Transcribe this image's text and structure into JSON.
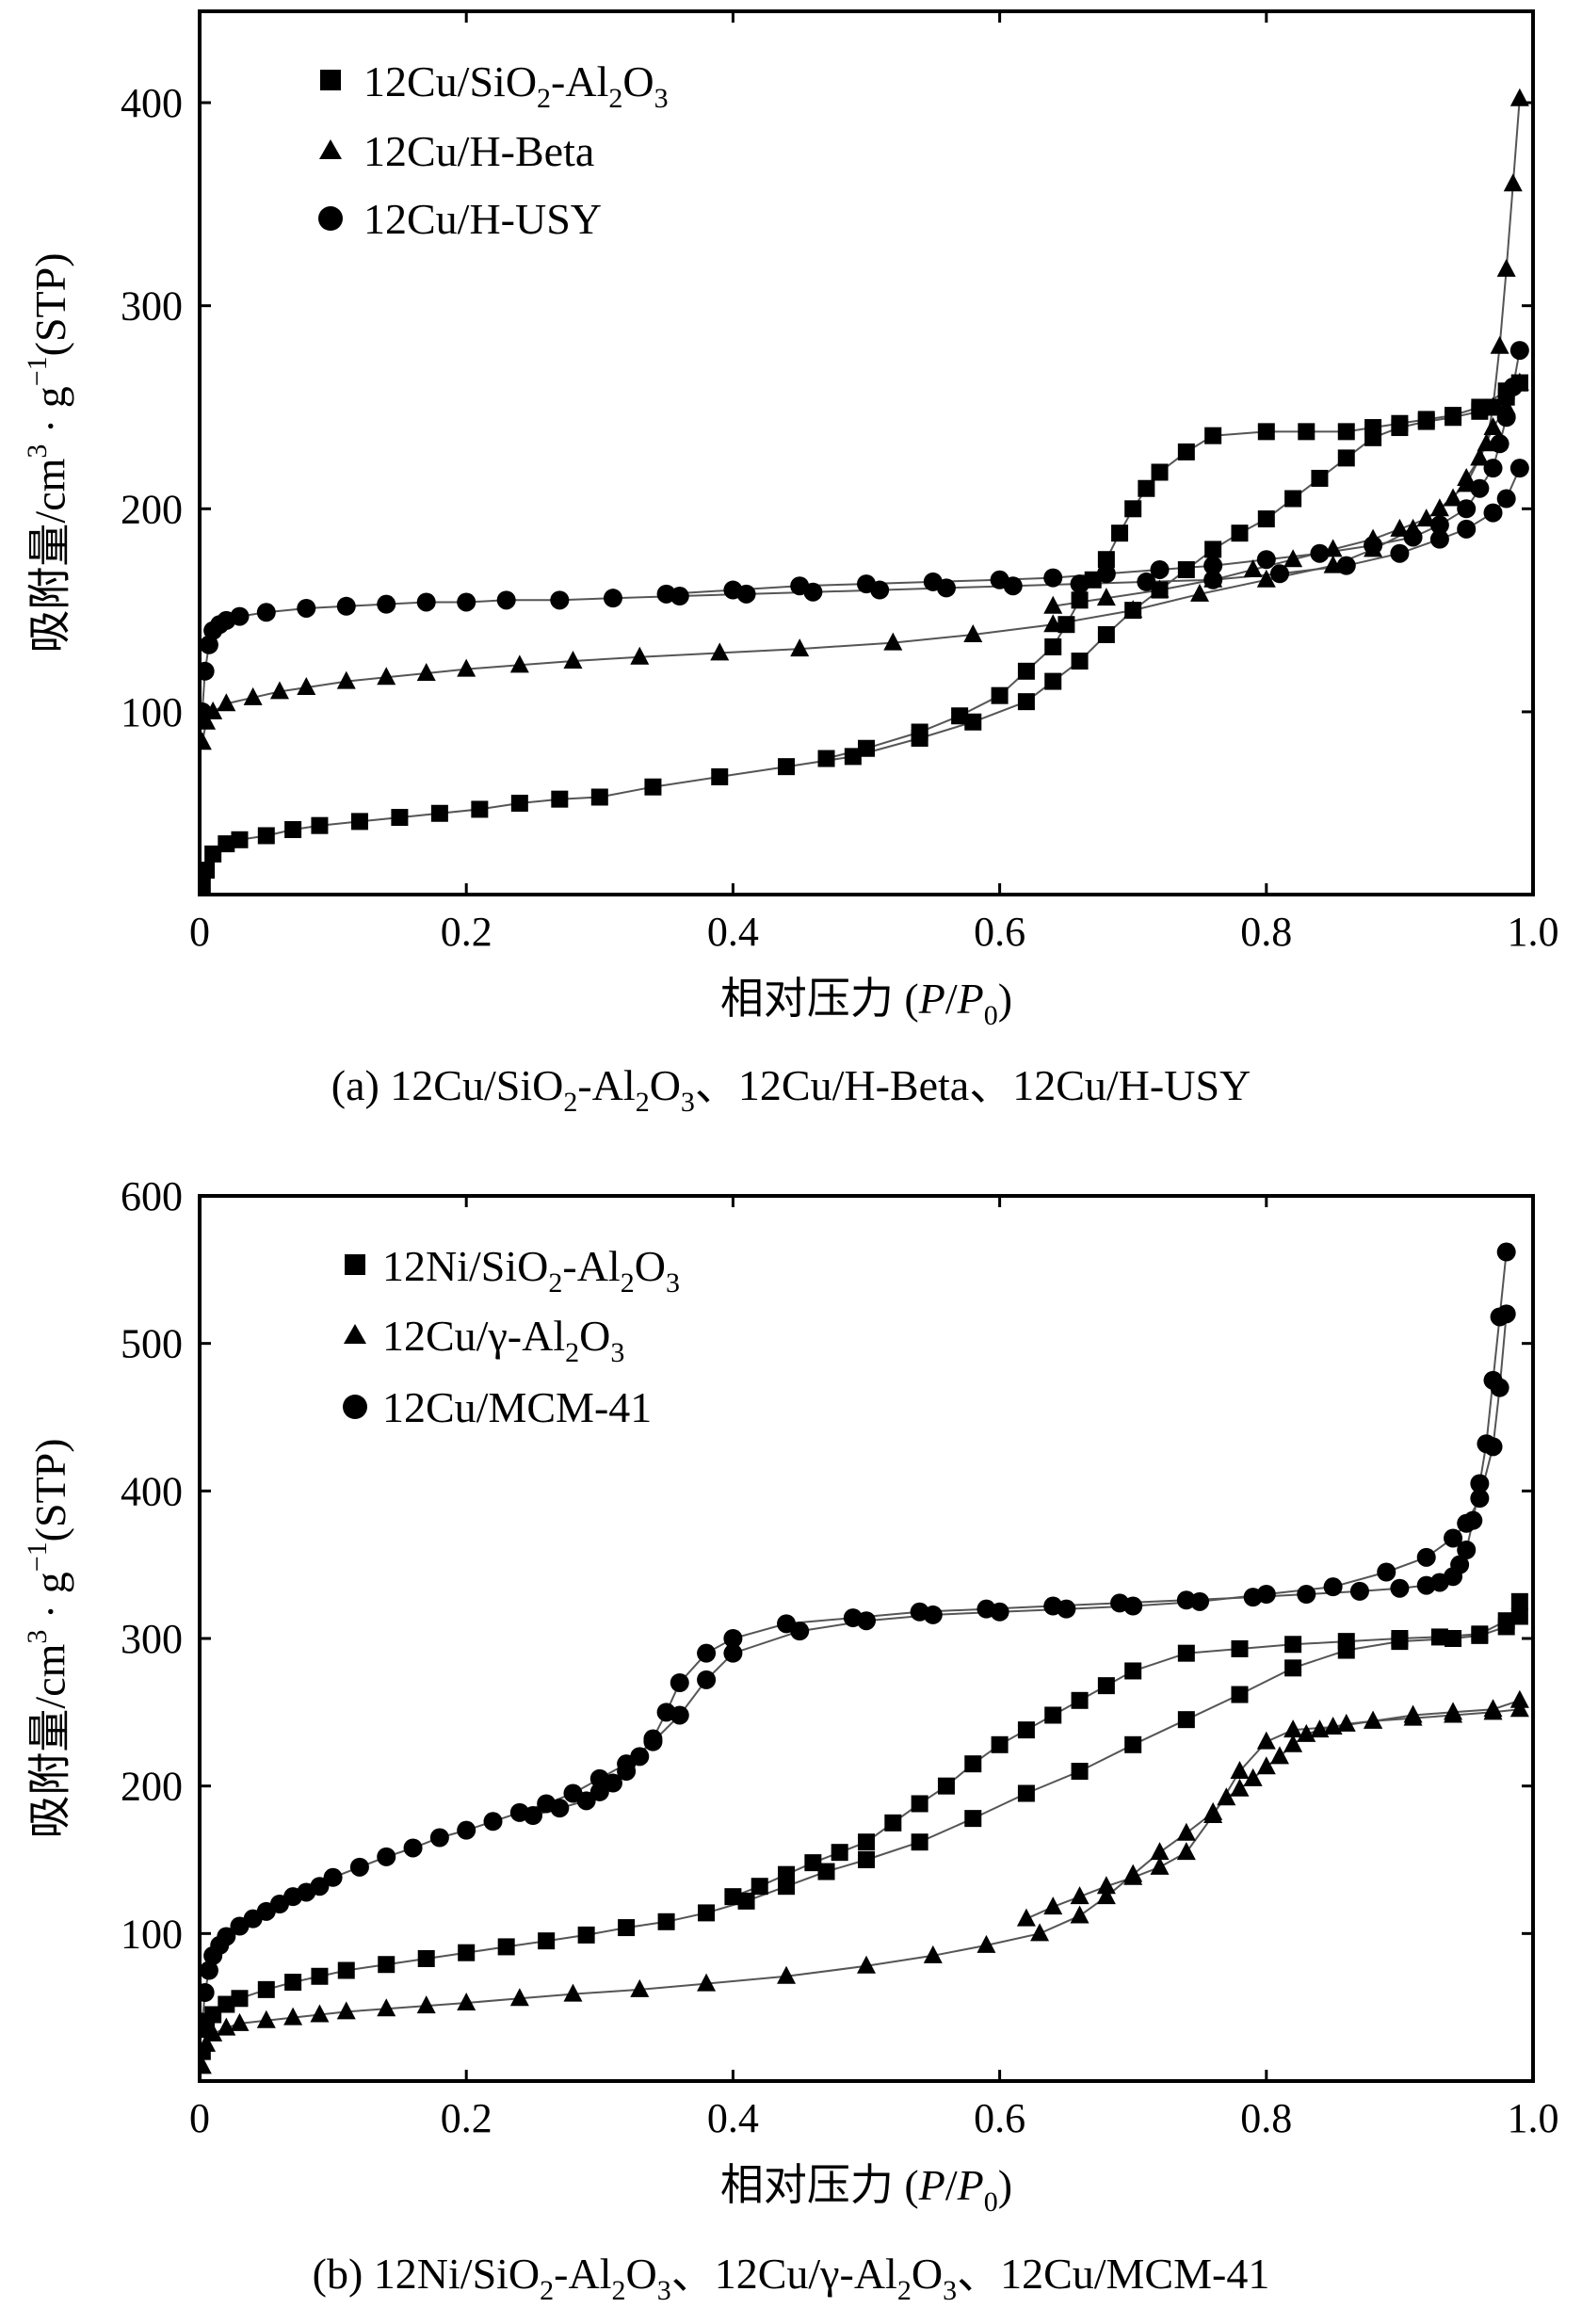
{
  "chart_data": [
    {
      "type": "scatter",
      "panel": "a",
      "caption_prefix": "(a) ",
      "caption": "(a) 12Cu/SiO2-Al2O3、12Cu/H-Beta、12Cu/H-USY",
      "xlabel": "相对压力 (P/P0)",
      "ylabel": "吸附量/cm3 · g−1(STP)",
      "xlim": [
        0,
        1.0
      ],
      "ylim": [
        10,
        445
      ],
      "xticks": [
        0,
        0.2,
        0.4,
        0.6,
        0.8,
        1.0
      ],
      "xtick_labels": [
        "0",
        "0.2",
        "0.4",
        "0.6",
        "0.8",
        "1.0"
      ],
      "yticks": [
        100,
        200,
        300,
        400
      ],
      "ytick_labels": [
        "100",
        "200",
        "300",
        "400"
      ],
      "legend_position": "top-left",
      "series": [
        {
          "name": "12Cu/SiO2-Al2O3",
          "marker": "square",
          "branches": [
            {
              "x": [
                0.002,
                0.005,
                0.01,
                0.02,
                0.03,
                0.05,
                0.07,
                0.09,
                0.12,
                0.15,
                0.18,
                0.21,
                0.24,
                0.27,
                0.3,
                0.34,
                0.39,
                0.44,
                0.49,
                0.54,
                0.58,
                0.62,
                0.64,
                0.66,
                0.68,
                0.7,
                0.72,
                0.74,
                0.76,
                0.78,
                0.8,
                0.82,
                0.84,
                0.86,
                0.88,
                0.9,
                0.92,
                0.94,
                0.96,
                0.97,
                0.98,
                0.99
              ],
              "y": [
                15,
                22,
                30,
                35,
                37,
                39,
                42,
                44,
                46,
                48,
                50,
                52,
                55,
                57,
                58,
                63,
                68,
                73,
                78,
                87,
                95,
                105,
                115,
                125,
                138,
                150,
                160,
                170,
                180,
                188,
                195,
                205,
                215,
                225,
                235,
                240,
                243,
                245,
                248,
                250,
                255,
                262
              ]
            },
            {
              "x": [
                0.99,
                0.98,
                0.96,
                0.94,
                0.92,
                0.9,
                0.88,
                0.86,
                0.83,
                0.8,
                0.76,
                0.74,
                0.72,
                0.71,
                0.7,
                0.69,
                0.68,
                0.67,
                0.66,
                0.65,
                0.64,
                0.62,
                0.6,
                0.57,
                0.54,
                0.5,
                0.47
              ],
              "y": [
                262,
                258,
                250,
                246,
                244,
                242,
                240,
                238,
                238,
                238,
                236,
                228,
                218,
                210,
                200,
                188,
                175,
                165,
                155,
                143,
                132,
                120,
                108,
                98,
                90,
                82,
                77
              ]
            }
          ]
        },
        {
          "name": "12Cu/H-Beta",
          "marker": "triangle",
          "branches": [
            {
              "x": [
                0.002,
                0.005,
                0.01,
                0.02,
                0.04,
                0.06,
                0.08,
                0.11,
                0.14,
                0.17,
                0.2,
                0.24,
                0.28,
                0.33,
                0.39,
                0.45,
                0.52,
                0.58,
                0.64,
                0.7,
                0.75,
                0.8,
                0.85,
                0.88,
                0.91,
                0.93,
                0.95,
                0.96,
                0.97,
                0.98,
                0.99
              ],
              "y": [
                85,
                95,
                100,
                104,
                107,
                110,
                112,
                115,
                117,
                119,
                121,
                123,
                125,
                127,
                129,
                131,
                134,
                138,
                143,
                150,
                158,
                165,
                172,
                180,
                190,
                200,
                212,
                225,
                240,
                250,
                262
              ]
            },
            {
              "x": [
                0.99,
                0.985,
                0.98,
                0.975,
                0.97,
                0.965,
                0.96,
                0.95,
                0.94,
                0.92,
                0.9,
                0.88,
                0.85,
                0.82,
                0.79,
                0.76,
                0.72,
                0.68,
                0.64
              ],
              "y": [
                402,
                360,
                318,
                280,
                250,
                232,
                225,
                215,
                205,
                195,
                190,
                185,
                180,
                175,
                170,
                165,
                160,
                156,
                152
              ]
            }
          ]
        },
        {
          "name": "12Cu/H-USY",
          "marker": "circle",
          "branches": [
            {
              "x": [
                0.002,
                0.004,
                0.007,
                0.01,
                0.015,
                0.02,
                0.03,
                0.05,
                0.08,
                0.11,
                0.14,
                0.17,
                0.2,
                0.23,
                0.27,
                0.31,
                0.36,
                0.41,
                0.46,
                0.51,
                0.56,
                0.61,
                0.66,
                0.71,
                0.76,
                0.81,
                0.86,
                0.9,
                0.93,
                0.95,
                0.97,
                0.98,
                0.99
              ],
              "y": [
                100,
                120,
                133,
                140,
                143,
                145,
                147,
                149,
                151,
                152,
                153,
                154,
                154,
                155,
                155,
                156,
                157,
                158,
                159,
                160,
                161,
                162,
                163,
                164,
                165,
                168,
                172,
                178,
                185,
                190,
                198,
                205,
                220
              ]
            },
            {
              "x": [
                0.99,
                0.985,
                0.98,
                0.975,
                0.97,
                0.96,
                0.95,
                0.93,
                0.91,
                0.88,
                0.84,
                0.8,
                0.76,
                0.72,
                0.68,
                0.64,
                0.6,
                0.55,
                0.5,
                0.45,
                0.4,
                0.35
              ],
              "y": [
                278,
                260,
                245,
                232,
                220,
                210,
                200,
                192,
                186,
                182,
                178,
                175,
                172,
                170,
                168,
                166,
                165,
                164,
                163,
                162,
                160,
                158
              ]
            }
          ]
        }
      ]
    },
    {
      "type": "scatter",
      "panel": "b",
      "caption_prefix": "(b) ",
      "caption": "(b) 12Ni/SiO2-Al2O3、12Cu/γ-Al2O3、12Cu/MCM-41",
      "xlabel": "相对压力 (P/P0)",
      "ylabel": "吸附量/cm3 · g−1(STP)",
      "xlim": [
        0,
        1.0
      ],
      "ylim": [
        0,
        600
      ],
      "xticks": [
        0,
        0.2,
        0.4,
        0.6,
        0.8,
        1.0
      ],
      "xtick_labels": [
        "0",
        "0.2",
        "0.4",
        "0.6",
        "0.8",
        "1.0"
      ],
      "yticks": [
        100,
        200,
        300,
        400,
        500,
        600
      ],
      "ytick_labels": [
        "100",
        "200",
        "300",
        "400",
        "500",
        "600"
      ],
      "legend_position": "top-left",
      "series": [
        {
          "name": "12Ni/SiO2-Al2O3",
          "marker": "square",
          "branches": [
            {
              "x": [
                0.002,
                0.005,
                0.01,
                0.02,
                0.03,
                0.05,
                0.07,
                0.09,
                0.11,
                0.14,
                0.17,
                0.2,
                0.23,
                0.26,
                0.29,
                0.32,
                0.35,
                0.38,
                0.41,
                0.44,
                0.47,
                0.5,
                0.54,
                0.58,
                0.62,
                0.66,
                0.7,
                0.74,
                0.78,
                0.82,
                0.86,
                0.9,
                0.94,
                0.96,
                0.98,
                0.99
              ],
              "y": [
                20,
                35,
                45,
                52,
                56,
                62,
                67,
                71,
                75,
                79,
                83,
                87,
                91,
                95,
                99,
                104,
                108,
                114,
                122,
                132,
                142,
                150,
                162,
                178,
                195,
                210,
                228,
                245,
                262,
                280,
                292,
                298,
                300,
                302,
                308,
                315
              ]
            },
            {
              "x": [
                0.99,
                0.98,
                0.96,
                0.93,
                0.9,
                0.86,
                0.82,
                0.78,
                0.74,
                0.7,
                0.68,
                0.66,
                0.64,
                0.62,
                0.6,
                0.58,
                0.56,
                0.54,
                0.52,
                0.5,
                0.48,
                0.46,
                0.44,
                0.42,
                0.4
              ],
              "y": [
                325,
                312,
                303,
                301,
                300,
                298,
                296,
                293,
                290,
                278,
                268,
                258,
                248,
                238,
                228,
                215,
                200,
                188,
                175,
                162,
                155,
                148,
                140,
                132,
                125
              ]
            }
          ]
        },
        {
          "name": "12Cu/γ-Al2O3",
          "marker": "triangle",
          "branches": [
            {
              "x": [
                0.002,
                0.005,
                0.01,
                0.02,
                0.03,
                0.05,
                0.07,
                0.09,
                0.11,
                0.14,
                0.17,
                0.2,
                0.24,
                0.28,
                0.33,
                0.38,
                0.44,
                0.5,
                0.55,
                0.59,
                0.63,
                0.66,
                0.68,
                0.7,
                0.72,
                0.74,
                0.76,
                0.77,
                0.78,
                0.79,
                0.8,
                0.81,
                0.82,
                0.83,
                0.84,
                0.86,
                0.88,
                0.91,
                0.94,
                0.97,
                0.99
              ],
              "y": [
                10,
                25,
                32,
                36,
                39,
                41,
                43,
                45,
                47,
                49,
                51,
                53,
                56,
                59,
                62,
                66,
                71,
                78,
                85,
                92,
                100,
                112,
                125,
                140,
                155,
                168,
                182,
                192,
                198,
                205,
                213,
                220,
                228,
                235,
                238,
                242,
                244,
                246,
                248,
                250,
                252
              ]
            },
            {
              "x": [
                0.99,
                0.97,
                0.94,
                0.91,
                0.88,
                0.85,
                0.82,
                0.8,
                0.78,
                0.76,
                0.74,
                0.72,
                0.7,
                0.68,
                0.66,
                0.64,
                0.62
              ],
              "y": [
                258,
                252,
                250,
                248,
                244,
                240,
                238,
                230,
                210,
                180,
                155,
                145,
                138,
                132,
                125,
                118,
                110
              ]
            }
          ]
        },
        {
          "name": "12Cu/MCM-41",
          "marker": "circle",
          "branches": [
            {
              "x": [
                0.002,
                0.004,
                0.007,
                0.01,
                0.015,
                0.02,
                0.03,
                0.04,
                0.05,
                0.06,
                0.07,
                0.08,
                0.09,
                0.1,
                0.12,
                0.14,
                0.16,
                0.18,
                0.2,
                0.22,
                0.24,
                0.26,
                0.28,
                0.3,
                0.32,
                0.34,
                0.36,
                0.38,
                0.4,
                0.45,
                0.5,
                0.55,
                0.6,
                0.65,
                0.7,
                0.75,
                0.8,
                0.85,
                0.89,
                0.92,
                0.94,
                0.95,
                0.96,
                0.97,
                0.975,
                0.98
              ],
              "y": [
                40,
                60,
                75,
                85,
                92,
                98,
                105,
                110,
                115,
                120,
                125,
                128,
                132,
                138,
                145,
                152,
                158,
                165,
                170,
                176,
                182,
                188,
                195,
                205,
                215,
                230,
                248,
                272,
                290,
                305,
                312,
                316,
                318,
                320,
                322,
                325,
                330,
                335,
                345,
                355,
                368,
                378,
                395,
                430,
                470,
                520
              ]
            },
            {
              "x": [
                0.98,
                0.975,
                0.97,
                0.965,
                0.96,
                0.955,
                0.95,
                0.945,
                0.94,
                0.93,
                0.92,
                0.9,
                0.87,
                0.83,
                0.79,
                0.74,
                0.69,
                0.64,
                0.59,
                0.54,
                0.49,
                0.44,
                0.4,
                0.38,
                0.36,
                0.35,
                0.34,
                0.33,
                0.32,
                0.31,
                0.3,
                0.29,
                0.27,
                0.25
              ],
              "y": [
                562,
                518,
                475,
                432,
                405,
                380,
                360,
                350,
                342,
                338,
                336,
                334,
                332,
                330,
                328,
                326,
                324,
                322,
                320,
                318,
                314,
                310,
                300,
                290,
                270,
                250,
                232,
                220,
                210,
                202,
                196,
                190,
                185,
                180
              ]
            }
          ]
        }
      ]
    }
  ]
}
